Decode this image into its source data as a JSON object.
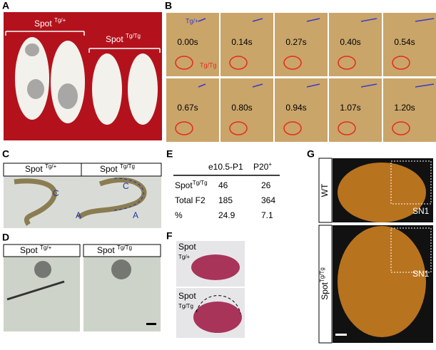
{
  "panels": {
    "a": {
      "label": "A",
      "groups": [
        {
          "base": "Spot",
          "sup": "Tg/+"
        },
        {
          "base": "Spot",
          "sup": "Tg/Tg"
        }
      ]
    },
    "b": {
      "label": "B",
      "frame_labels": [
        "Tg/+",
        "Tg/Tg"
      ],
      "times": [
        "0.00s",
        "0.14s",
        "0.27s",
        "0.40s",
        "0.54s",
        "0.67s",
        "0.80s",
        "0.94s",
        "1.07s",
        "1.20s"
      ]
    },
    "c": {
      "label": "C",
      "headers": [
        {
          "base": "Spot",
          "sup": "Tg/+"
        },
        {
          "base": "Spot",
          "sup": "Tg/Tg"
        }
      ],
      "marks": [
        "C",
        "A",
        "C",
        "A"
      ]
    },
    "d": {
      "label": "D",
      "headers": [
        {
          "base": "Spot",
          "sup": "Tg/+"
        },
        {
          "base": "Spot",
          "sup": "Tg/Tg"
        }
      ]
    },
    "e": {
      "label": "E",
      "table": {
        "columns": [
          "e10.5-P1",
          {
            "base": "P20",
            "sup": "+"
          }
        ],
        "rows": [
          {
            "head": {
              "base": "Spot",
              "sup": "Tg/Tg"
            },
            "cells": [
              46,
              26
            ]
          },
          {
            "head": "Total F2",
            "cells": [
              185,
              364
            ]
          },
          {
            "head": "%",
            "cells": [
              24.9,
              7.1
            ]
          }
        ]
      }
    },
    "f": {
      "label": "F",
      "labels": [
        {
          "base": "Spot",
          "sup": "Tg/+"
        },
        {
          "base": "Spot",
          "sup": "Tg/Tg"
        }
      ]
    },
    "g": {
      "label": "G",
      "rows": [
        "WT",
        {
          "base": "Spot",
          "sup": "Tg/Tg"
        }
      ],
      "marks": [
        "SN1",
        "SN1"
      ]
    }
  }
}
